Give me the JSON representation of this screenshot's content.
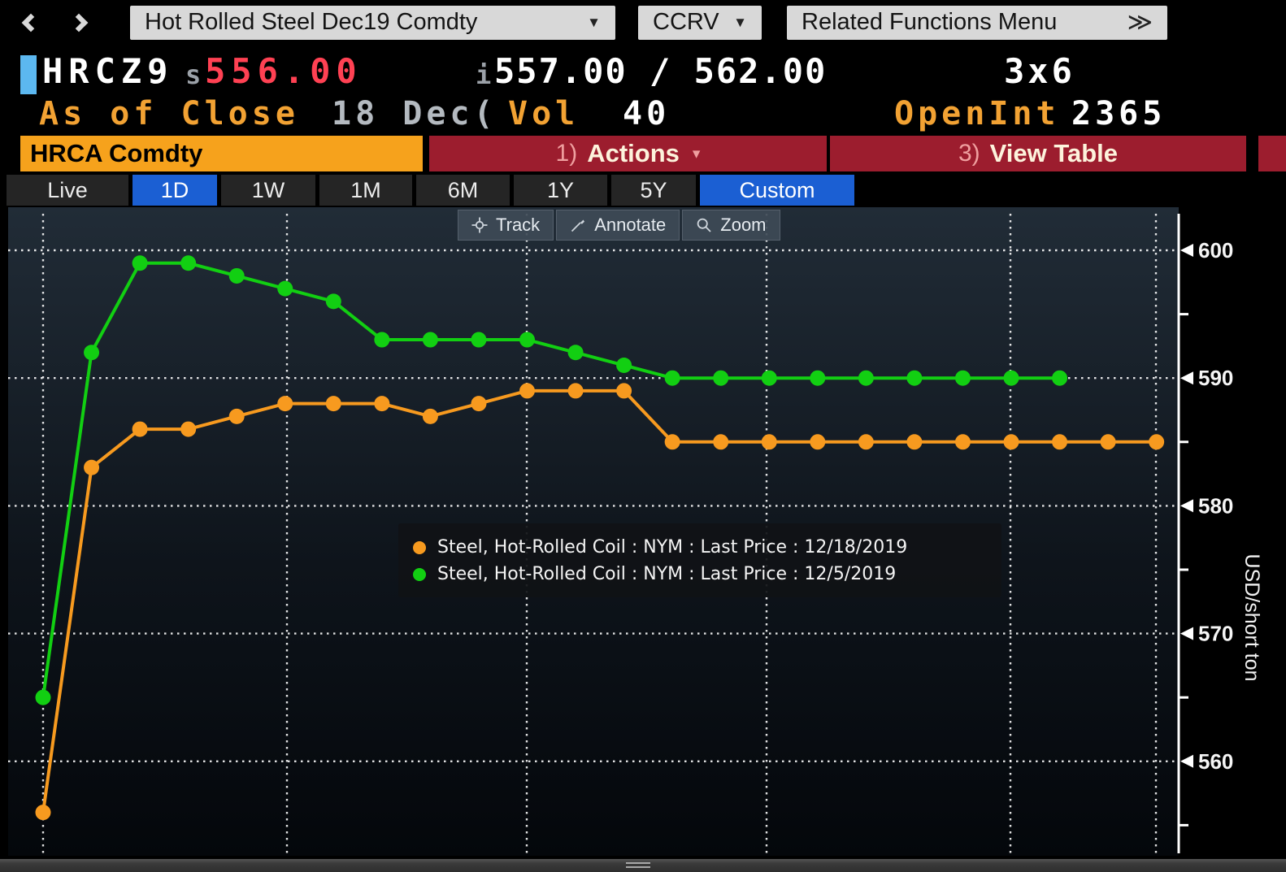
{
  "topbar": {
    "security": "Hot Rolled Steel Dec19 Comdty",
    "ccrv": "CCRV",
    "related_functions": "Related Functions Menu"
  },
  "quote": {
    "ticker": "HRCZ9",
    "settle_prefix": "s",
    "settle_price": "556.00",
    "bid_prefix": "i",
    "bid_ask": "557.00 / 562.00",
    "lot_size": "3x6",
    "as_of_label": "As of Close",
    "as_of_date": "18 Dec(",
    "vol_label": "Vol",
    "vol_value": "40",
    "open_int_label": "OpenInt",
    "open_int_value": "2365"
  },
  "command_row": {
    "security_tab": "HRCA Comdty",
    "actions_num": "1)",
    "actions_label": "Actions",
    "view_table_num": "3)",
    "view_table_label": "View Table"
  },
  "range_tabs": {
    "items": [
      {
        "label": "Live",
        "active": false
      },
      {
        "label": "1D",
        "active": true
      },
      {
        "label": "1W",
        "active": false
      },
      {
        "label": "1M",
        "active": false
      },
      {
        "label": "6M",
        "active": false
      },
      {
        "label": "1Y",
        "active": false
      },
      {
        "label": "5Y",
        "active": false
      },
      {
        "label": "Custom",
        "active": true
      }
    ]
  },
  "chart_toolbar": {
    "track": "Track",
    "annotate": "Annotate",
    "zoom": "Zoom"
  },
  "legend": {
    "items": [
      {
        "text": "Steel, Hot-Rolled Coil : NYM : Last Price : 12/18/2019",
        "color": "#f79a1f"
      },
      {
        "text": "Steel, Hot-Rolled Coil : NYM : Last Price : 12/5/2019",
        "color": "#12cf12"
      }
    ]
  },
  "chart_data": {
    "type": "line",
    "ylabel": "USD/short ton",
    "yticks": [
      600,
      590,
      580,
      570,
      560
    ],
    "minor_yticks": [
      595,
      585,
      575,
      565,
      555
    ],
    "ylim": [
      552,
      603.5
    ],
    "grid": true,
    "legend_position": "center",
    "series": [
      {
        "name": "Steel, Hot-Rolled Coil : NYM : Last Price : 12/18/2019",
        "color": "#f79a1f",
        "values": [
          556,
          583,
          586,
          586,
          587,
          588,
          588,
          588,
          587,
          588,
          589,
          589,
          589,
          585,
          585,
          585,
          585,
          585,
          585,
          585,
          585,
          585,
          585,
          585
        ]
      },
      {
        "name": "Steel, Hot-Rolled Coil : NYM : Last Price : 12/5/2019",
        "color": "#12cf12",
        "values": [
          565,
          592,
          599,
          599,
          598,
          597,
          596,
          593,
          593,
          593,
          593,
          592,
          591,
          590,
          590,
          590,
          590,
          590,
          590,
          590,
          590,
          590
        ]
      }
    ]
  },
  "colors": {
    "accent_orange": "#f6a21c",
    "button_red": "#9c1d2e",
    "tab_blue": "#1b5fd3",
    "price_red": "#ff4153",
    "amber_text": "#f2a233",
    "cursor_blue": "#5cb8f0"
  }
}
